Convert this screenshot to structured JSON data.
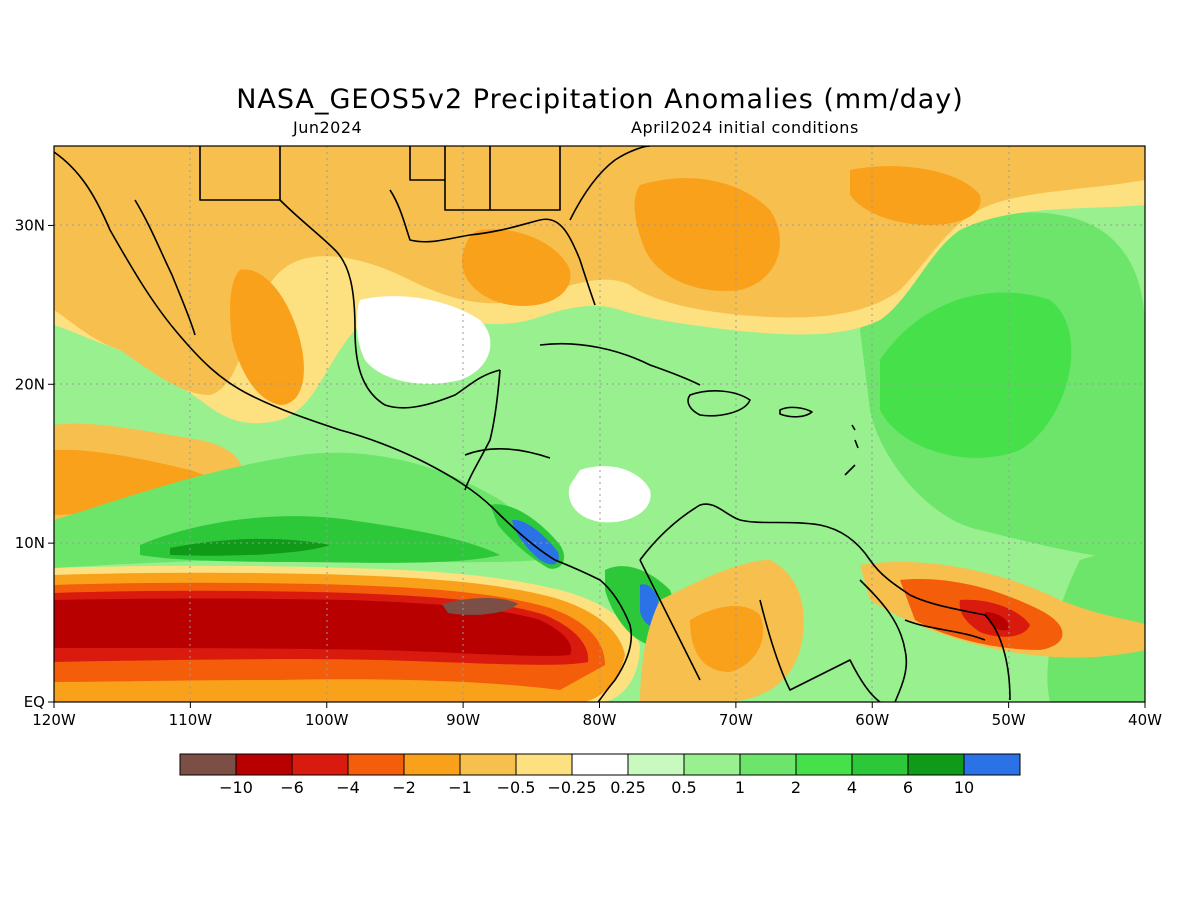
{
  "title": "NASA_GEOS5v2 Precipitation Anomalies (mm/day)",
  "subtitle_left": "Jun2024",
  "subtitle_right": "April2024 initial conditions",
  "map": {
    "lon_range": [
      -120,
      -40
    ],
    "lat_range": [
      0,
      35
    ],
    "x_ticks": [
      "120W",
      "110W",
      "100W",
      "90W",
      "80W",
      "70W",
      "60W",
      "50W",
      "40W"
    ],
    "y_ticks": [
      "EQ",
      "10N",
      "20N",
      "30N"
    ],
    "gridlines": "dotted"
  },
  "colorbar": {
    "colors": [
      "#7b4f45",
      "#b90000",
      "#d91a0f",
      "#f45d0a",
      "#f9a11a",
      "#f7c04e",
      "#fde080",
      "#ffffff",
      "#c8fac0",
      "#98f08e",
      "#6ce56a",
      "#46e04a",
      "#2dc83a",
      "#0f9a18",
      "#2b72e6"
    ],
    "labels": [
      "-10",
      "-6",
      "-4",
      "-2",
      "-1",
      "-0.5",
      "-0.25",
      "0.25",
      "0.5",
      "1",
      "2",
      "4",
      "6",
      "10"
    ]
  }
}
